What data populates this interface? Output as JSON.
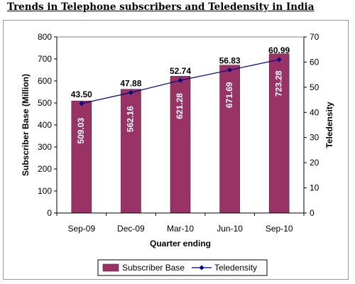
{
  "page_title": "Trends in Telephone subscribers and Teledensity in India",
  "chart_data": {
    "type": "bar",
    "title": "Trends in Telephone subscribers and Teledensity in India",
    "categories": [
      "Sep-09",
      "Dec-09",
      "Mar-10",
      "Jun-10",
      "Sep-10"
    ],
    "xlabel": "Quarter ending",
    "ylabel": "Subscriber Base (Million)",
    "y2label": "Teledensity",
    "ylim": [
      0,
      800
    ],
    "yticks": [
      "0",
      "100",
      "200",
      "300",
      "400",
      "500",
      "600",
      "700",
      "800"
    ],
    "y2lim": [
      0,
      70
    ],
    "y2ticks": [
      "0",
      "10",
      "20",
      "30",
      "40",
      "50",
      "60",
      "70"
    ],
    "series": [
      {
        "name": "Subscriber Base",
        "type": "bar",
        "axis": "left",
        "values": [
          509.03,
          562.16,
          621.28,
          671.69,
          723.28
        ],
        "labels": [
          "509.03",
          "562.16",
          "621.28",
          "671.69",
          "723.28"
        ],
        "color": "#993366"
      },
      {
        "name": "Teledensity",
        "type": "line",
        "axis": "right",
        "values": [
          43.5,
          47.88,
          52.74,
          56.83,
          60.99
        ],
        "labels": [
          "43.50",
          "47.88",
          "52.74",
          "56.83",
          "60.99"
        ],
        "color": "#000080"
      }
    ],
    "grid": false,
    "legend": "bottom"
  }
}
